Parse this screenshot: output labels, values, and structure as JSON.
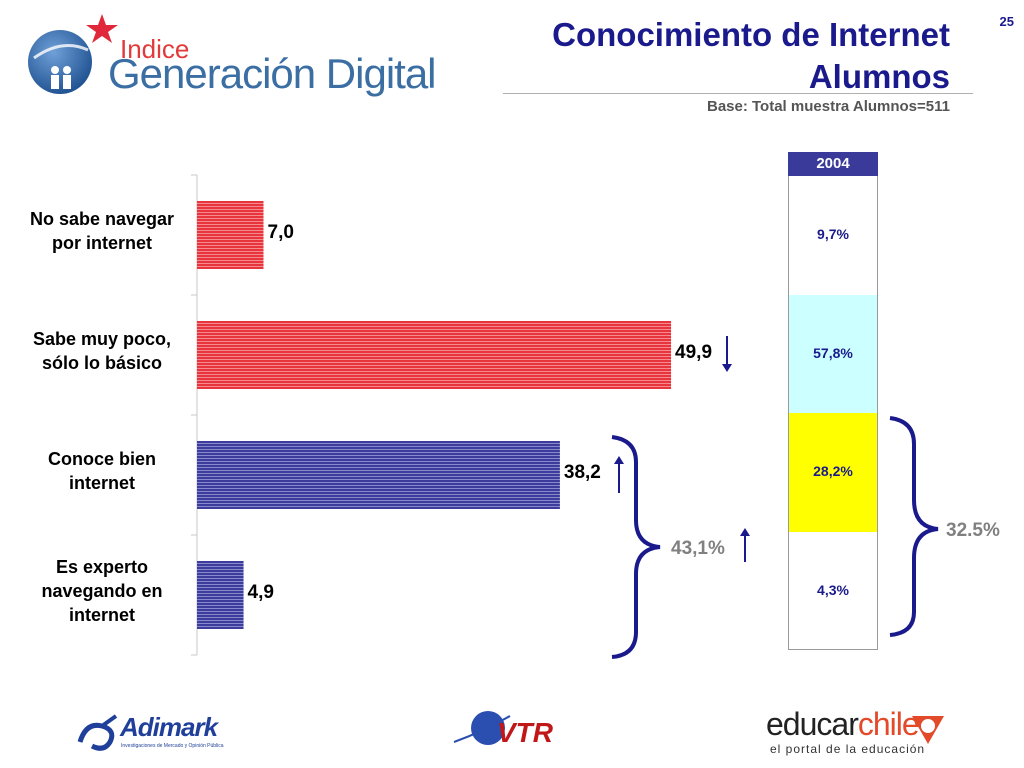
{
  "header": {
    "title_line1": "Conocimiento de Internet",
    "title_line2": "Alumnos",
    "base": "Base: Total muestra Alumnos=511",
    "page_number": "25"
  },
  "logos": {
    "main_small": "Indice",
    "main_large": "Generación Digital",
    "adimark": "Adimark",
    "adimark_sub": "Investigaciones de Mercado y Opinión Pública",
    "vtr": "VTR",
    "educar_a": "educar",
    "educar_b": "chile",
    "educar_sub": "el portal de la educación"
  },
  "colors": {
    "title": "#1a1a8c",
    "bar_red": "#e8343c",
    "bar_blue": "#3c3c9c",
    "seg_white": "#ffffff",
    "seg_cyan": "#ccffff",
    "seg_yellow": "#ffff00",
    "brace": "#1a1a8c"
  },
  "chart_data": [
    {
      "type": "bar",
      "orientation": "horizontal",
      "categories": [
        "No sabe navegar por internet",
        "Sabe muy poco, sólo lo básico",
        "Conoce bien internet",
        "Es experto navegando en internet"
      ],
      "category_lines": [
        [
          "No sabe navegar",
          "por internet"
        ],
        [
          "Sabe muy poco,",
          "sólo lo básico"
        ],
        [
          "Conoce bien",
          "internet"
        ],
        [
          "Es experto",
          "navegando en",
          "internet"
        ]
      ],
      "values": [
        7.0,
        49.9,
        38.2,
        4.9
      ],
      "value_labels": [
        "7,0",
        "49,9",
        "38,2",
        "4,9"
      ],
      "trend_arrows": [
        "",
        "down",
        "up",
        ""
      ],
      "bar_colors": [
        "red",
        "red",
        "blue",
        "blue"
      ],
      "xlim": [
        0,
        100
      ],
      "grouped_total": {
        "label": "43,1%",
        "value": 43.1,
        "categories": [
          2,
          3
        ],
        "trend": "up"
      }
    },
    {
      "type": "bar",
      "stacked": true,
      "header": "2004",
      "segments": [
        {
          "label": "9,7%",
          "value": 9.7,
          "color": "white"
        },
        {
          "label": "57,8%",
          "value": 57.8,
          "color": "cyan"
        },
        {
          "label": "28,2%",
          "value": 28.2,
          "color": "yellow"
        },
        {
          "label": "4,3%",
          "value": 4.3,
          "color": "white"
        }
      ],
      "grouped_total": {
        "label": "32.5%",
        "value": 32.5,
        "segments": [
          2,
          3
        ]
      }
    }
  ]
}
